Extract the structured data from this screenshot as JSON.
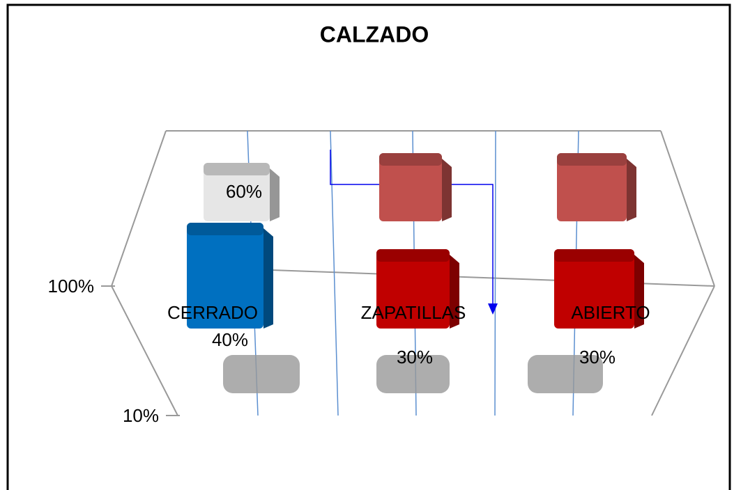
{
  "chart_data": {
    "type": "bar3d",
    "title": "CALZADO",
    "categories": [
      "CERRADO",
      "ZAPATILLAS",
      "ABIERTO"
    ],
    "series": [
      {
        "values": [
          40,
          30,
          30
        ],
        "value_labels": [
          "40%",
          "30%",
          "30%"
        ],
        "colors": [
          "#0070c0",
          "#c00000",
          "#c00000"
        ]
      },
      {
        "values": [
          60,
          70,
          70
        ],
        "value_labels": [
          "60%",
          null,
          null
        ],
        "colors": [
          "#e6e6e6",
          "#c0504d",
          "#c0504d"
        ]
      }
    ],
    "ylim": [
      10,
      100
    ],
    "yticks": [
      {
        "value": 100,
        "label": "100%"
      },
      {
        "value": 10,
        "label": "10%"
      }
    ]
  }
}
